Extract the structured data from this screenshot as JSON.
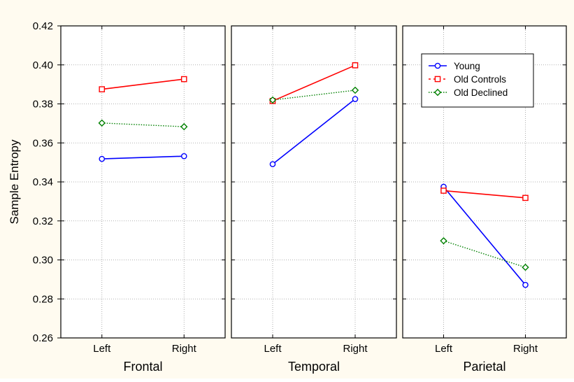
{
  "chart_data": {
    "type": "line",
    "ylabel": "Sample Entropy",
    "ylim": [
      0.26,
      0.42
    ],
    "yticks": [
      0.26,
      0.28,
      0.3,
      0.32,
      0.34,
      0.36,
      0.38,
      0.4,
      0.42
    ],
    "ytick_labels": [
      "0.26",
      "0.28",
      "0.30",
      "0.32",
      "0.34",
      "0.36",
      "0.38",
      "0.40",
      "0.42"
    ],
    "categories": [
      "Left",
      "Right"
    ],
    "grid": true,
    "legend_placement": "top-right of third panel",
    "panels": [
      {
        "xlabel": "Frontal",
        "series": [
          {
            "name": "Young",
            "values": [
              0.3518,
              0.3532
            ]
          },
          {
            "name": "Old Controls",
            "values": [
              0.3875,
              0.3927
            ]
          },
          {
            "name": "Old Declined",
            "values": [
              0.3702,
              0.3683
            ]
          }
        ]
      },
      {
        "xlabel": "Temporal",
        "series": [
          {
            "name": "Young",
            "values": [
              0.3491,
              0.3825
            ]
          },
          {
            "name": "Old Controls",
            "values": [
              0.3815,
              0.3998
            ]
          },
          {
            "name": "Old Declined",
            "values": [
              0.382,
              0.387
            ]
          }
        ]
      },
      {
        "xlabel": "Parietal",
        "series": [
          {
            "name": "Young",
            "values": [
              0.3375,
              0.2872
            ]
          },
          {
            "name": "Old Controls",
            "values": [
              0.3355,
              0.3318
            ]
          },
          {
            "name": "Old Declined",
            "values": [
              0.3098,
              0.2962
            ]
          }
        ]
      }
    ],
    "series_styles": [
      {
        "name": "Young",
        "color": "#0000ff",
        "marker": "circle",
        "dash": "solid"
      },
      {
        "name": "Old Controls",
        "color": "#ff0000",
        "marker": "square",
        "dash": "solid"
      },
      {
        "name": "Old Declined",
        "color": "#008000",
        "marker": "diamond",
        "dash": "dotted"
      }
    ],
    "legend": [
      "Young",
      "Old Controls",
      "Old Declined"
    ],
    "background_color": "#fffbf0"
  }
}
